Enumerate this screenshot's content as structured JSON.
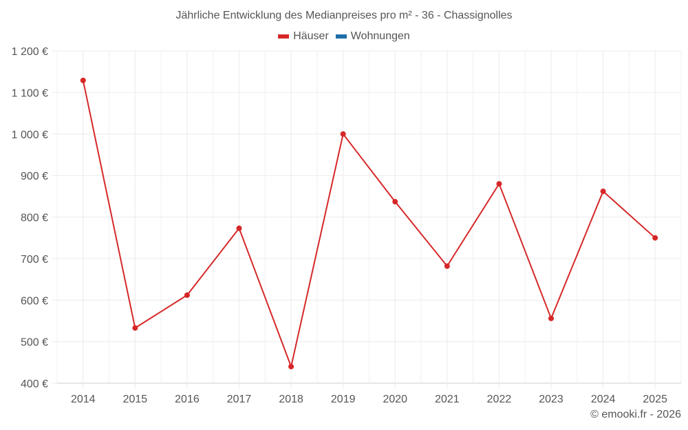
{
  "title": "Jährliche Entwicklung des Medianpreises pro m² - 36 - Chassignolles",
  "legend": [
    {
      "label": "Häuser",
      "color": "#d62728"
    },
    {
      "label": "Wohnungen",
      "color": "#1f6fa8"
    }
  ],
  "credit": "© emooki.fr - 2026",
  "chart_data": {
    "type": "line",
    "title": "Jährliche Entwicklung des Medianpreises pro m² - 36 - Chassignolles",
    "xlabel": "",
    "ylabel": "",
    "categories": [
      "2014",
      "2015",
      "2016",
      "2017",
      "2018",
      "2019",
      "2020",
      "2021",
      "2022",
      "2023",
      "2024",
      "2025"
    ],
    "series": [
      {
        "name": "Häuser",
        "color": "#d62728",
        "values": [
          1129,
          533,
          612,
          773,
          440,
          1000,
          837,
          682,
          880,
          556,
          862,
          750
        ]
      },
      {
        "name": "Wohnungen",
        "color": "#1f6fa8",
        "values": []
      }
    ],
    "ylim": [
      400,
      1200
    ],
    "yticks": [
      400,
      500,
      600,
      700,
      800,
      900,
      1000,
      1100,
      1200
    ],
    "ytick_labels": [
      "400 €",
      "500 €",
      "600 €",
      "700 €",
      "800 €",
      "900 €",
      "1 000 €",
      "1 100 €",
      "1 200 €"
    ],
    "grid": true,
    "legend_position": "top"
  }
}
